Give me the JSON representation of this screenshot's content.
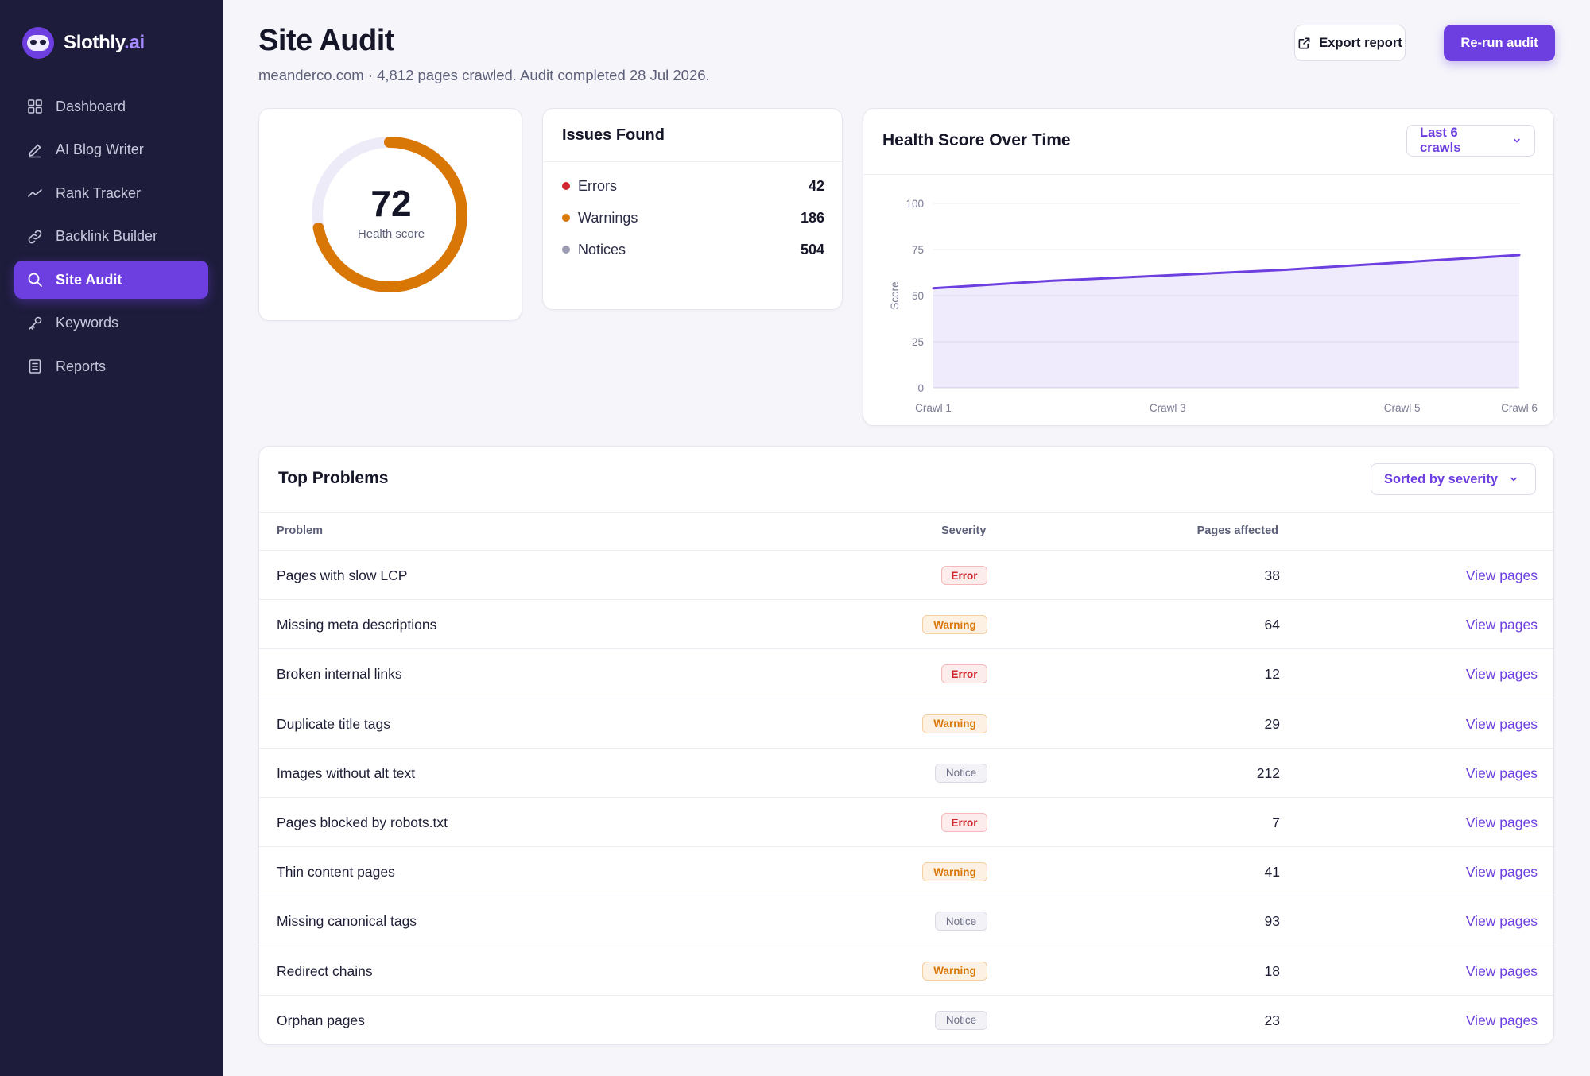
{
  "brand": {
    "name": "Slothly",
    "tld": ".ai"
  },
  "sidebar": {
    "items": [
      {
        "label": "Dashboard",
        "icon": "grid-icon"
      },
      {
        "label": "AI Blog Writer",
        "icon": "pen-icon"
      },
      {
        "label": "Rank Tracker",
        "icon": "trend-icon"
      },
      {
        "label": "Backlink Builder",
        "icon": "link-icon"
      },
      {
        "label": "Site Audit",
        "icon": "search-icon",
        "active": true
      },
      {
        "label": "Keywords",
        "icon": "key-icon"
      },
      {
        "label": "Reports",
        "icon": "document-icon"
      }
    ]
  },
  "header": {
    "title": "Site Audit",
    "subtitle": "meanderco.com · 4,812 pages crawled. Audit completed 28 Jul 2026.",
    "export_label": "Export report",
    "rerun_label": "Re-run audit"
  },
  "health": {
    "value": "72",
    "label": "Health score",
    "score_fraction": 0.72,
    "color": "#d97706"
  },
  "issues": {
    "title": "Issues Found",
    "rows": [
      {
        "name": "Errors",
        "count": "42",
        "color": "#d1262d"
      },
      {
        "name": "Warnings",
        "count": "186",
        "color": "#d97706"
      },
      {
        "name": "Notices",
        "count": "504",
        "color": "#9a9bb0"
      }
    ]
  },
  "chart_panel": {
    "title": "Health Score Over Time",
    "range_label": "Last 6 crawls"
  },
  "chart_data": {
    "type": "area",
    "x": [
      "Crawl 1",
      "Crawl 2",
      "Crawl 3",
      "Crawl 4",
      "Crawl 5",
      "Crawl 6"
    ],
    "x_tick_labels": [
      "Crawl 1",
      "Crawl 3",
      "Crawl 5",
      "Crawl 6"
    ],
    "series": [
      {
        "values": [
          54,
          58,
          61,
          64,
          68,
          72
        ]
      }
    ],
    "ylabel": "Score",
    "ylim": [
      0,
      100
    ],
    "yticks": [
      0,
      25,
      50,
      75,
      100
    ],
    "grid": true,
    "color": "#6d3fe0"
  },
  "problems": {
    "title": "Top Problems",
    "sort_label": "Sorted by severity",
    "columns": {
      "problem": "Problem",
      "severity": "Severity",
      "pages": "Pages affected"
    },
    "rows": [
      {
        "problem": "Pages with slow LCP",
        "severity": "Error",
        "pages": "38",
        "action": "View pages"
      },
      {
        "problem": "Missing meta descriptions",
        "severity": "Warning",
        "pages": "64",
        "action": "View pages"
      },
      {
        "problem": "Broken internal links",
        "severity": "Error",
        "pages": "12",
        "action": "View pages"
      },
      {
        "problem": "Duplicate title tags",
        "severity": "Warning",
        "pages": "29",
        "action": "View pages"
      },
      {
        "problem": "Images without alt text",
        "severity": "Notice",
        "pages": "212",
        "action": "View pages"
      },
      {
        "problem": "Pages blocked by robots.txt",
        "severity": "Error",
        "pages": "7",
        "action": "View pages"
      },
      {
        "problem": "Thin content pages",
        "severity": "Warning",
        "pages": "41",
        "action": "View pages"
      },
      {
        "problem": "Missing canonical tags",
        "severity": "Notice",
        "pages": "93",
        "action": "View pages"
      },
      {
        "problem": "Redirect chains",
        "severity": "Warning",
        "pages": "18",
        "action": "View pages"
      },
      {
        "problem": "Orphan pages",
        "severity": "Notice",
        "pages": "23",
        "action": "View pages"
      }
    ]
  }
}
